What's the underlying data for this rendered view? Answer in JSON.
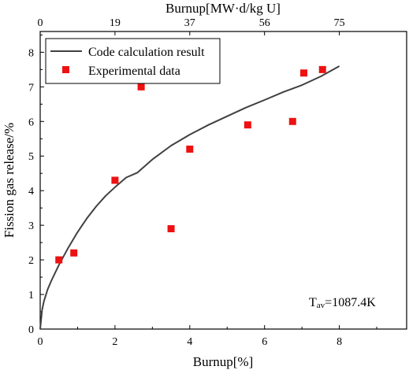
{
  "chart_data": {
    "type": "scatter",
    "xlabel": "Burnup[%]",
    "ylabel": "Fission gas release/%",
    "top_axis_label": "Burnup[MW·d/kg U]",
    "xlim": [
      0,
      9.8
    ],
    "ylim": [
      0,
      8.6
    ],
    "x_ticks": [
      0,
      2,
      4,
      6,
      8
    ],
    "y_ticks": [
      0,
      1,
      2,
      3,
      4,
      5,
      6,
      7,
      8
    ],
    "top_ticks": [
      {
        "x": 0,
        "label": "0"
      },
      {
        "x": 2,
        "label": "19"
      },
      {
        "x": 4,
        "label": "37"
      },
      {
        "x": 6,
        "label": "56"
      },
      {
        "x": 8,
        "label": "75"
      }
    ],
    "grid": false,
    "legend_position": "top-left",
    "annotation": {
      "main": "T",
      "sub": "av",
      "rest": "=1087.4K"
    },
    "series": [
      {
        "name": "Code calculation result",
        "kind": "line",
        "color": "#404040",
        "x": [
          0,
          0.05,
          0.1,
          0.2,
          0.3,
          0.5,
          0.75,
          1.0,
          1.25,
          1.5,
          1.75,
          2.0,
          2.3,
          2.6,
          3.0,
          3.5,
          4.0,
          4.5,
          5.0,
          5.5,
          6.0,
          6.5,
          7.0,
          7.5,
          8.0
        ],
        "y": [
          0,
          0.55,
          0.8,
          1.15,
          1.4,
          1.85,
          2.35,
          2.8,
          3.2,
          3.55,
          3.85,
          4.1,
          4.38,
          4.52,
          4.9,
          5.3,
          5.62,
          5.9,
          6.15,
          6.4,
          6.62,
          6.85,
          7.05,
          7.3,
          7.6
        ]
      },
      {
        "name": "Experimental data",
        "kind": "scatter",
        "color": "#ee1111",
        "x": [
          0.5,
          0.9,
          2.0,
          2.7,
          3.5,
          4.0,
          5.55,
          6.75,
          7.05,
          7.55
        ],
        "y": [
          2.0,
          2.2,
          4.3,
          7.0,
          2.9,
          5.2,
          5.9,
          6.0,
          7.4,
          7.5
        ]
      }
    ]
  }
}
